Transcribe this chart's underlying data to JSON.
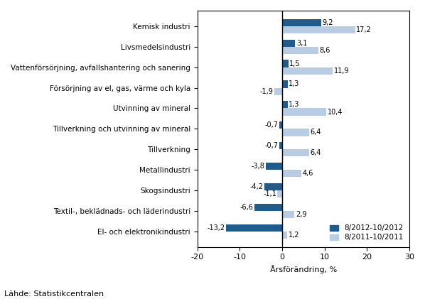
{
  "categories": [
    "El- och elektronikindustri",
    "Textil-, beklädnads- och läderindustri",
    "Skogsindustri",
    "Metallindustri",
    "Tillverkning",
    "Tillverkning och utvinning av mineral",
    "Utvinning av mineral",
    "Försörjning av el, gas, värme och kyla",
    "Vattenförsörjning, avfallshantering och sanering",
    "Livsmedelsindustri",
    "Kemisk industri"
  ],
  "values_2012": [
    -13.2,
    -6.6,
    -4.2,
    -3.8,
    -0.7,
    -0.7,
    1.3,
    1.3,
    1.5,
    3.1,
    9.2
  ],
  "values_2011": [
    1.2,
    2.9,
    -1.1,
    4.6,
    6.4,
    6.4,
    10.4,
    -1.9,
    11.9,
    8.6,
    17.2
  ],
  "color_2012": "#1F5C8B",
  "color_2011": "#B8CCE4",
  "xlabel": "Årsförändring, %",
  "xlim": [
    -20,
    30
  ],
  "xticks": [
    -20,
    -10,
    0,
    10,
    20,
    30
  ],
  "legend_2012": "8/2012-10/2012",
  "legend_2011": "8/2011-10/2011",
  "source": "Lähde: Statistikcentralen",
  "bar_height": 0.35,
  "background_color": "#FFFFFF",
  "label_fontsize": 7.0,
  "ytick_fontsize": 7.5,
  "xtick_fontsize": 8,
  "xlabel_fontsize": 8,
  "legend_fontsize": 7.5,
  "source_fontsize": 8
}
